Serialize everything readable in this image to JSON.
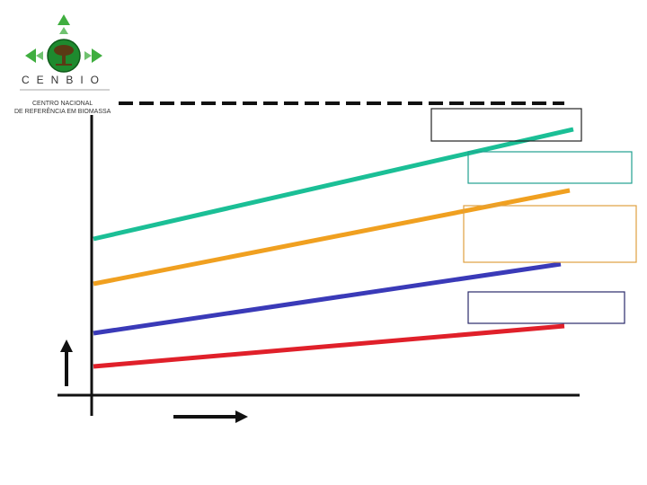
{
  "logo": {
    "brand": "CENBIO",
    "name_line_1": "CENTRO NACIONAL",
    "name_line_2": "DE REFERÊNCIA EM BIOMASSA",
    "colors": {
      "diamonds": "#3fae3f",
      "globe": "#1e8a2e",
      "tree": "#6b4a1e"
    }
  },
  "diagram": {
    "axis_color": "#111111",
    "dashed_limit_color": "#111111",
    "arrows": [
      "up-arrow",
      "right-arrow"
    ],
    "lines": [
      {
        "name": "",
        "color": "#1bbf96",
        "rank": 1
      },
      {
        "name": "",
        "color": "#f0a020",
        "rank": 2
      },
      {
        "name": "",
        "color": "#3a3ab8",
        "rank": 3
      },
      {
        "name": "",
        "color": "#e0202a",
        "rank": 4
      }
    ],
    "label_boxes": [
      {
        "text": "",
        "border": "#222222"
      },
      {
        "text": "",
        "border": "#20a090"
      },
      {
        "text": "",
        "border": "#e0a040"
      },
      {
        "text": "",
        "border": "#2a2a6a"
      }
    ]
  }
}
